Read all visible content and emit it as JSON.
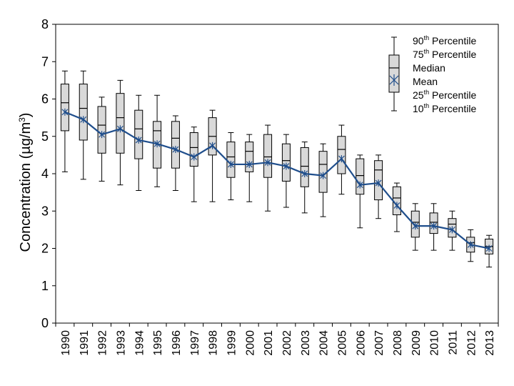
{
  "chart_data": {
    "type": "box",
    "title": "",
    "xlabel": "",
    "ylabel": "Concentration (µg/m³)",
    "ylabel_parts": {
      "main": "Concentration (",
      "unit_mu": "µ",
      "unit_g": "g/m",
      "unit_exp": "3",
      "close": ")"
    },
    "ylim": [
      0,
      8
    ],
    "yticks": [
      0,
      1,
      2,
      3,
      4,
      5,
      6,
      7,
      8
    ],
    "grid": false,
    "categories": [
      "1990",
      "1991",
      "1992",
      "1993",
      "1994",
      "1995",
      "1996",
      "1997",
      "1998",
      "1999",
      "2000",
      "2001",
      "2002",
      "2003",
      "2004",
      "2005",
      "2006",
      "2007",
      "2008",
      "2009",
      "2010",
      "2011",
      "2012",
      "2013"
    ],
    "series": [
      {
        "name": "90th Percentile",
        "values": [
          6.75,
          6.75,
          6.05,
          6.5,
          6.1,
          6.1,
          5.55,
          5.25,
          5.7,
          5.1,
          5.05,
          5.3,
          5.05,
          4.85,
          4.8,
          5.3,
          4.5,
          4.5,
          3.75,
          3.2,
          3.2,
          3.0,
          2.5,
          2.35
        ]
      },
      {
        "name": "75th Percentile",
        "values": [
          6.4,
          6.4,
          5.8,
          6.15,
          5.7,
          5.4,
          5.4,
          5.1,
          5.5,
          4.85,
          4.85,
          5.05,
          4.8,
          4.7,
          4.6,
          5.0,
          4.4,
          4.35,
          3.65,
          3.0,
          2.95,
          2.8,
          2.3,
          2.25
        ]
      },
      {
        "name": "Median",
        "values": [
          5.9,
          5.75,
          5.3,
          5.5,
          5.2,
          5.15,
          4.95,
          4.7,
          5.0,
          4.45,
          4.6,
          4.45,
          4.35,
          4.2,
          4.25,
          4.65,
          3.95,
          4.1,
          3.35,
          2.7,
          2.7,
          2.65,
          2.15,
          2.05
        ]
      },
      {
        "name": "Mean",
        "values": [
          5.65,
          5.45,
          5.05,
          5.2,
          4.9,
          4.8,
          4.65,
          4.45,
          4.75,
          4.25,
          4.25,
          4.3,
          4.2,
          4.0,
          3.95,
          4.4,
          3.7,
          3.75,
          3.15,
          2.6,
          2.6,
          2.5,
          2.1,
          2.0
        ]
      },
      {
        "name": "25th Percentile",
        "values": [
          5.15,
          4.9,
          4.55,
          4.55,
          4.4,
          4.15,
          4.15,
          4.2,
          4.5,
          3.9,
          4.05,
          3.9,
          3.8,
          3.65,
          3.5,
          4.0,
          3.45,
          3.3,
          2.9,
          2.3,
          2.4,
          2.3,
          1.9,
          1.85
        ]
      },
      {
        "name": "10th Percentile",
        "values": [
          4.05,
          3.85,
          3.8,
          3.7,
          3.55,
          3.65,
          3.55,
          3.25,
          3.25,
          3.3,
          3.25,
          3.0,
          3.1,
          2.95,
          2.85,
          3.45,
          2.55,
          2.8,
          2.45,
          1.95,
          1.95,
          1.95,
          1.65,
          1.5
        ]
      }
    ],
    "legend_position": "top-right",
    "legend_entries": [
      {
        "base": "90",
        "sup": "th",
        "rest": " Percentile"
      },
      {
        "base": "75",
        "sup": "th",
        "rest": " Percentile"
      },
      {
        "base": "Median",
        "sup": "",
        "rest": ""
      },
      {
        "base": "Mean",
        "sup": "",
        "rest": ""
      },
      {
        "base": "25",
        "sup": "th",
        "rest": " Percentile"
      },
      {
        "base": "10",
        "sup": "th",
        "rest": " Percentile"
      }
    ],
    "colors": {
      "box_fill": "#d9d9d9",
      "mean_line": "#1f4e8c"
    }
  }
}
